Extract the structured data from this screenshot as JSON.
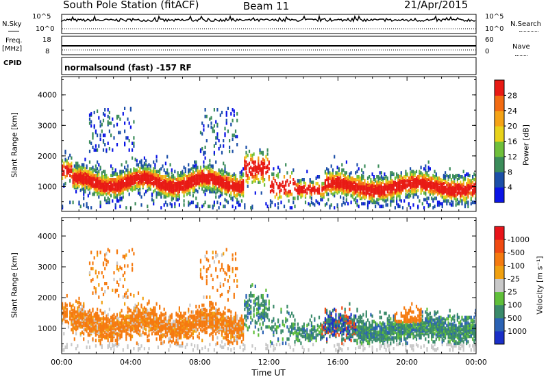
{
  "header": {
    "station": "South Pole Station (fitACF)",
    "beam": "Beam 11",
    "date": "21/Apr/2015"
  },
  "strips": {
    "nsky_label": "N.Sky",
    "nsky_ticks": [
      "10^5",
      "10^0"
    ],
    "nsearch_label": "N.Search",
    "nsearch_ticks": [
      "10^5",
      "10^0"
    ],
    "freq_label_1": "Freq.",
    "freq_label_2": "[MHz]",
    "freq_ticks": [
      "18",
      "8"
    ],
    "nave_label": "Nave",
    "nave_ticks": [
      "60",
      "0"
    ],
    "cpid_label": "CPID",
    "cpid_text": "normalsound (fast) -157 RF"
  },
  "chart_data": [
    {
      "type": "heatmap",
      "name": "power",
      "ylabel": "Slant Range [km]",
      "yticks": [
        1000,
        2000,
        3000,
        4000
      ],
      "ylim": [
        180,
        4600
      ],
      "xlim": [
        0,
        24
      ],
      "colorbar": {
        "label": "Power [dB]",
        "ticks": [
          "4",
          "8",
          "12",
          "16",
          "20",
          "24",
          "28"
        ],
        "colors": [
          "#0a14e6",
          "#1c4fa8",
          "#3b8c5a",
          "#6fbf3b",
          "#e8d21a",
          "#f5a316",
          "#f26b12",
          "#e81a14"
        ]
      }
    },
    {
      "type": "heatmap",
      "name": "velocity",
      "ylabel": "Slant Range [km]",
      "yticks": [
        1000,
        2000,
        3000,
        4000
      ],
      "ylim": [
        180,
        4600
      ],
      "xlim": [
        0,
        24
      ],
      "xlabel": "Time UT",
      "xticks": [
        "00:00",
        "04:00",
        "08:00",
        "12:00",
        "16:00",
        "20:00",
        "00:00"
      ],
      "colorbar": {
        "label": "Velocity [m s⁻¹]",
        "ticks": [
          "1000",
          "500",
          "100",
          "25",
          "-25",
          "-100",
          "-500",
          "-1000"
        ],
        "colors": [
          "#1a2fc8",
          "#2b62b4",
          "#3a8a6a",
          "#5fbf3a",
          "#c8c8c8",
          "#f0a010",
          "#f57a0f",
          "#f04a12",
          "#e8141a"
        ]
      }
    }
  ]
}
